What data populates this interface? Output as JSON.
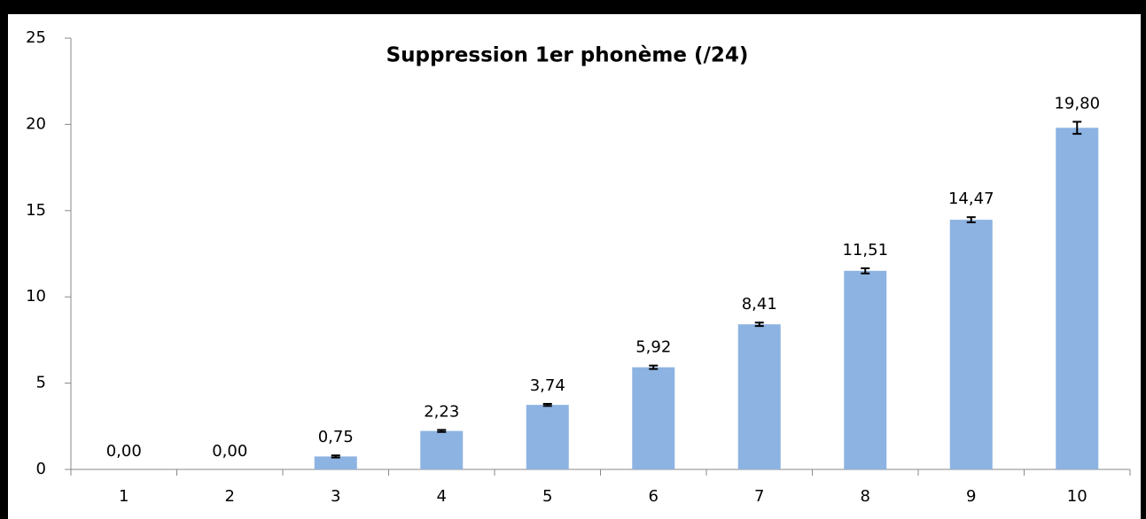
{
  "chart_data": {
    "type": "bar",
    "title": "Suppression 1er phonème (/24)",
    "categories": [
      "1",
      "2",
      "3",
      "4",
      "5",
      "6",
      "7",
      "8",
      "9",
      "10"
    ],
    "values": [
      0,
      0,
      0.75,
      2.23,
      3.74,
      5.92,
      8.41,
      11.51,
      14.47,
      19.8
    ],
    "value_labels": [
      "0,00",
      "0,00",
      "0,75",
      "2,23",
      "3,74",
      "5,92",
      "8,41",
      "11,51",
      "14,47",
      "19,80"
    ],
    "errors": [
      0,
      0,
      0.06,
      0.06,
      0.06,
      0.1,
      0.1,
      0.15,
      0.15,
      0.35
    ],
    "color": "#8db3e2",
    "error_color": "#000000",
    "ylim": [
      0,
      25
    ],
    "yticks": [
      0,
      5,
      10,
      15,
      20,
      25
    ],
    "grid": false
  }
}
